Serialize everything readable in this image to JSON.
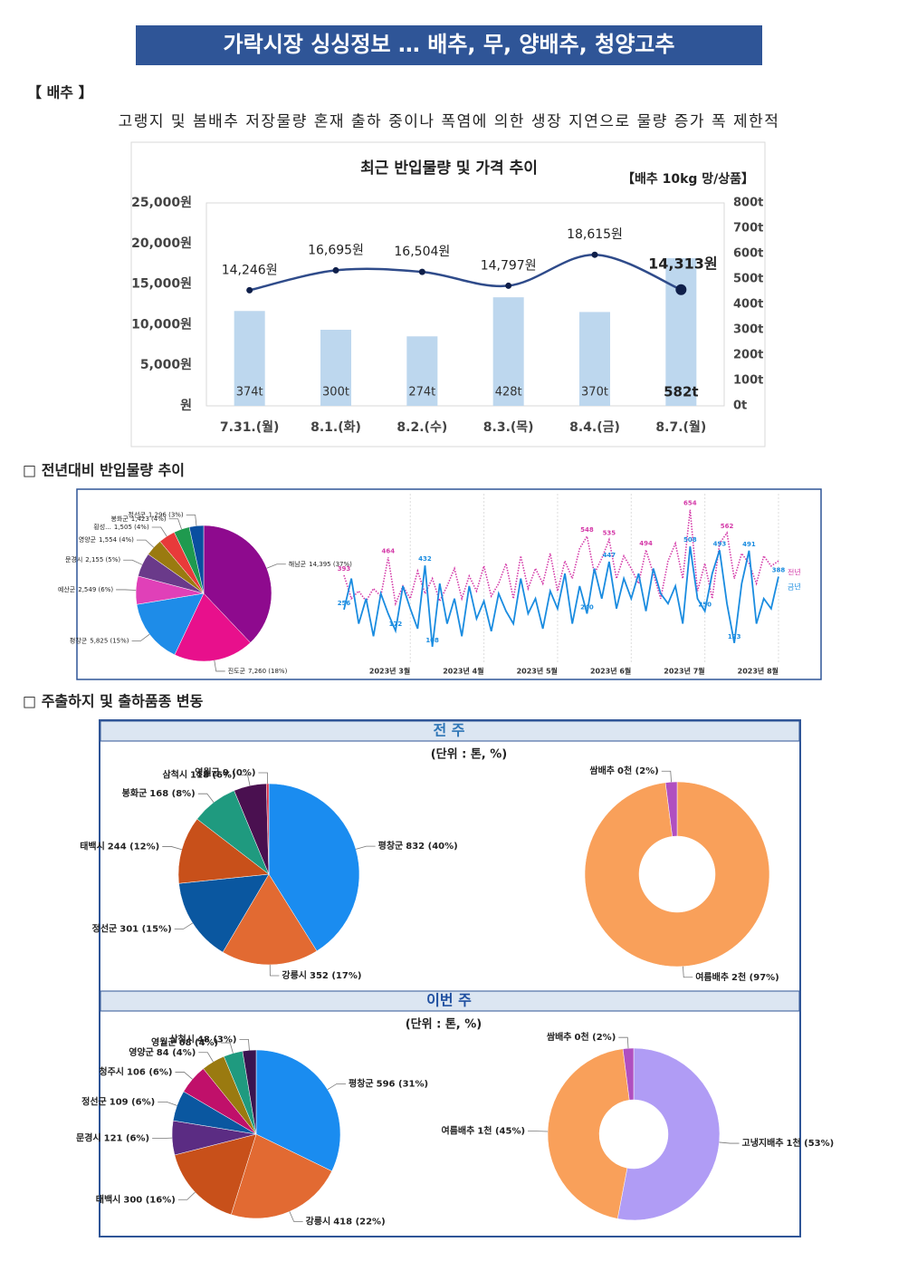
{
  "header": {
    "title": "가락시장 싱싱정보 … 배추, 무, 양배추, 청양고추"
  },
  "section1": {
    "heading": "【 배추 】",
    "summary": "고랭지 및 봄배추 저장물량 혼재 출하 중이나 폭염에 의한 생장 지연으로 물량 증가 폭 제한적"
  },
  "section2": {
    "heading": "□ 전년대비 반입물량 추이"
  },
  "section3": {
    "heading": "□ 주출하지 및 출하품종 변동",
    "last_week": "전 주",
    "this_week": "이번 주",
    "unit": "(단위 : 톤, %)"
  },
  "chart_data": [
    {
      "type": "combo",
      "title": "최근 반입물량 및 가격 추이",
      "subtitle": "【배추 10kg 망/상품】",
      "categories": [
        "7.31.(월)",
        "8.1.(화)",
        "8.2.(수)",
        "8.3.(목)",
        "8.4.(금)",
        "8.7.(월)"
      ],
      "series": [
        {
          "type": "bar",
          "axis": "y2",
          "color": "#bdd7ee",
          "values": [
            374,
            300,
            274,
            428,
            370,
            582
          ],
          "value_labels": [
            "374t",
            "300t",
            "274t",
            "428t",
            "370t",
            "582t"
          ]
        },
        {
          "type": "line",
          "color": "#2f4b8a",
          "values": [
            14246,
            16695,
            16504,
            14797,
            18615,
            14313
          ],
          "value_labels": [
            "14,246원",
            "16,695원",
            "16,504원",
            "14,797원",
            "18,615원",
            "14,313원"
          ]
        }
      ],
      "ylim": [
        0,
        25000
      ],
      "yticks": [
        {
          "value": 0,
          "label": "원"
        },
        {
          "value": 5000,
          "label": "5,000원"
        },
        {
          "value": 10000,
          "label": "10,000원"
        },
        {
          "value": 15000,
          "label": "15,000원"
        },
        {
          "value": 20000,
          "label": "20,000원"
        },
        {
          "value": 25000,
          "label": "25,000원"
        }
      ],
      "y2lim": [
        0,
        800
      ],
      "y2ticks": [
        {
          "value": 0,
          "label": "0t"
        },
        {
          "value": 100,
          "label": "100t"
        },
        {
          "value": 200,
          "label": "200t"
        },
        {
          "value": 300,
          "label": "300t"
        },
        {
          "value": 400,
          "label": "400t"
        },
        {
          "value": 500,
          "label": "500t"
        },
        {
          "value": 600,
          "label": "600t"
        },
        {
          "value": 700,
          "label": "700t"
        },
        {
          "value": 800,
          "label": "800t"
        }
      ],
      "grid": false
    },
    {
      "type": "pie",
      "categories": [
        "해남군",
        "진도군",
        "평창군",
        "예산군",
        "문경시",
        "영양군",
        "횡성...",
        "봉화군",
        "정선군"
      ],
      "values": [
        14395,
        7260,
        5825,
        2549,
        2155,
        1554,
        1505,
        1423,
        1296
      ],
      "value_labels": [
        "14,395 (37%)",
        "7,260 (18%)",
        "5,825 (15%)",
        "2,549 (6%)",
        "2,155 (5%)",
        "1,554 (4%)",
        "1,505 (4%)",
        "1,423 (4%)",
        "1,296 (3%)"
      ],
      "colors": [
        "#8e0a8e",
        "#e8108c",
        "#1e8ce8",
        "#e040b8",
        "#6a3a8a",
        "#9a7a10",
        "#e83a3a",
        "#1f9a4f",
        "#0a4fa0"
      ]
    },
    {
      "type": "line",
      "categories": [
        null,
        null,
        null,
        null,
        null,
        null,
        null,
        null,
        null,
        "2023년 3월",
        null,
        null,
        null,
        null,
        null,
        null,
        null,
        null,
        null,
        "2023년 4월",
        null,
        null,
        null,
        null,
        null,
        null,
        null,
        null,
        null,
        "2023년 5월",
        null,
        null,
        null,
        null,
        null,
        null,
        null,
        null,
        null,
        "2023년 6월",
        null,
        null,
        null,
        null,
        null,
        null,
        null,
        null,
        null,
        "2023년 7월",
        null,
        null,
        null,
        null,
        null,
        null,
        null,
        null,
        null,
        "2023년 8월"
      ],
      "ylim": [
        50,
        700
      ],
      "series": [
        {
          "name": "전년",
          "color": "#d43aa8",
          "line_style": "dotted",
          "values": [
            393,
            300,
            330,
            290,
            340,
            310,
            464,
            280,
            350,
            300,
            410,
            320,
            380,
            290,
            350,
            420,
            300,
            390,
            330,
            430,
            310,
            360,
            440,
            300,
            470,
            340,
            420,
            360,
            480,
            330,
            450,
            380,
            500,
            548,
            400,
            460,
            535,
            380,
            470,
            420,
            360,
            494,
            400,
            300,
            450,
            520,
            380,
            654,
            330,
            440,
            300,
            520,
            562,
            380,
            480,
            440,
            360,
            470,
            430,
            450
          ],
          "value_labels": [
            "393",
            null,
            null,
            null,
            null,
            null,
            "464",
            null,
            null,
            null,
            null,
            null,
            null,
            null,
            null,
            null,
            null,
            null,
            null,
            null,
            null,
            null,
            null,
            null,
            null,
            null,
            null,
            null,
            null,
            null,
            null,
            null,
            null,
            "548",
            null,
            null,
            "535",
            null,
            null,
            null,
            null,
            "494",
            null,
            null,
            null,
            null,
            null,
            "654",
            null,
            null,
            null,
            null,
            "562",
            null,
            null,
            null,
            null,
            null,
            null,
            null
          ]
        },
        {
          "name": "금년",
          "color": "#1a8ce0",
          "line_style": "solid",
          "values": [
            256,
            380,
            200,
            300,
            150,
            320,
            240,
            172,
            350,
            260,
            180,
            432,
            108,
            360,
            200,
            300,
            150,
            350,
            220,
            290,
            170,
            320,
            250,
            200,
            380,
            240,
            300,
            180,
            330,
            260,
            400,
            200,
            350,
            240,
            420,
            300,
            447,
            260,
            380,
            300,
            400,
            250,
            420,
            320,
            280,
            350,
            200,
            508,
            300,
            250,
            400,
            493,
            280,
            123,
            360,
            491,
            200,
            300,
            260,
            388
          ],
          "value_labels": [
            "256",
            null,
            null,
            null,
            null,
            null,
            null,
            "172",
            null,
            null,
            null,
            "432",
            "108",
            null,
            null,
            null,
            null,
            null,
            null,
            null,
            null,
            null,
            null,
            null,
            null,
            null,
            null,
            null,
            null,
            null,
            null,
            null,
            null,
            "240",
            null,
            null,
            "447",
            null,
            null,
            null,
            null,
            null,
            null,
            null,
            null,
            null,
            null,
            "508",
            null,
            "250",
            null,
            "493",
            null,
            "123",
            null,
            "491",
            null,
            null,
            null,
            "388"
          ]
        }
      ]
    },
    {
      "type": "pie",
      "categories": [
        "평창군",
        "강릉시",
        "정선군",
        "태백시",
        "봉화군",
        "삼척시",
        "영월군"
      ],
      "values": [
        832,
        352,
        301,
        244,
        168,
        118,
        9
      ],
      "value_labels": [
        "832 (40%)",
        "352 (17%)",
        "301 (15%)",
        "244 (12%)",
        "168 (8%)",
        "118 (6%)",
        "9 (0%)"
      ],
      "colors": [
        "#1a8cf0",
        "#e26a32",
        "#0a57a0",
        "#c8501a",
        "#1f9a7f",
        "#4a1050",
        "#d8304a"
      ]
    },
    {
      "type": "donut",
      "categories": [
        "여름배추",
        "쌈배추"
      ],
      "values": [
        97,
        2
      ],
      "value_labels": [
        "2천 (97%)",
        "0천 (2%)"
      ],
      "colors": [
        "#f9a05a",
        "#b04fc0"
      ]
    },
    {
      "type": "pie",
      "categories": [
        "평창군",
        "강릉시",
        "태백시",
        "문경시",
        "정선군",
        "청주시",
        "영양군",
        "영월군",
        "삼척시"
      ],
      "values": [
        596,
        418,
        300,
        121,
        109,
        106,
        84,
        68,
        48
      ],
      "value_labels": [
        "596 (31%)",
        "418 (22%)",
        "300 (16%)",
        "121 (6%)",
        "109 (6%)",
        "106 (6%)",
        "84 (4%)",
        "68 (4%)",
        "48 (3%)"
      ],
      "colors": [
        "#1a8cf0",
        "#e26a32",
        "#c8501a",
        "#5b2c83",
        "#0a57a0",
        "#c0106a",
        "#9a7a10",
        "#1f9a7f",
        "#3a1450"
      ]
    },
    {
      "type": "donut",
      "categories": [
        "고냉지배추",
        "여름배추",
        "쌈배추"
      ],
      "values": [
        53,
        45,
        2
      ],
      "value_labels": [
        "1천 (53%)",
        "1천 (45%)",
        "0천 (2%)"
      ],
      "colors": [
        "#b09cf5",
        "#f9a05a",
        "#b04fc0"
      ]
    }
  ]
}
